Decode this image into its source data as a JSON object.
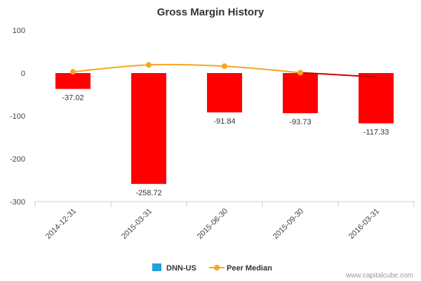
{
  "chart_data": {
    "type": "bar",
    "title": "Gross Margin History",
    "categories": [
      "2014-12-31",
      "2015-03-31",
      "2015-06-30",
      "2015-09-30",
      "2016-03-31"
    ],
    "series": [
      {
        "name": "DNN-US",
        "type": "bar",
        "values": [
          -37.02,
          -258.72,
          -91.84,
          -93.73,
          -117.33
        ],
        "labels": [
          "-37.02",
          "-258.72",
          "-91.84",
          "-93.73",
          "-117.33"
        ],
        "color": "#ff0000",
        "legend_color": "#1fa0e0"
      },
      {
        "name": "Peer Median",
        "type": "line",
        "values": [
          3,
          19,
          16,
          1,
          -9
        ],
        "color": "#f5a623",
        "tail_color": "#cc0000"
      }
    ],
    "ylim": [
      -300,
      100
    ],
    "yticks": [
      "100",
      "0",
      "-100",
      "-200",
      "-300"
    ],
    "ytick_values": [
      100,
      0,
      -100,
      -200,
      -300
    ],
    "grid": false,
    "legend": "bottom-center"
  },
  "credit": "www.capitalcube.com"
}
